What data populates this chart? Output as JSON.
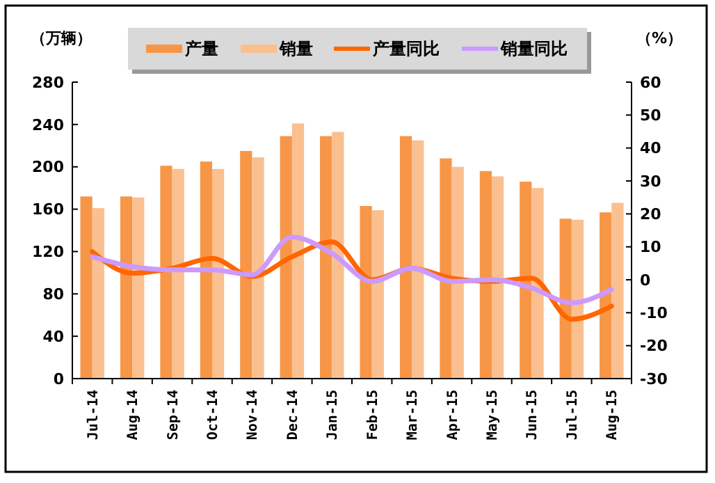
{
  "chart_data": {
    "type": "bar",
    "ylabel": "（万辆）",
    "y2label": "（%）",
    "categories": [
      "Jul-14",
      "Aug-14",
      "Sep-14",
      "Oct-14",
      "Nov-14",
      "Dec-14",
      "Jan-15",
      "Feb-15",
      "Mar-15",
      "Apr-15",
      "May-15",
      "Jun-15",
      "Jul-15",
      "Aug-15"
    ],
    "series": [
      {
        "name": "产量",
        "color": "#f79646",
        "values": [
          172,
          172,
          201,
          205,
          215,
          229,
          229,
          163,
          229,
          208,
          196,
          186,
          151,
          157
        ]
      },
      {
        "name": "销量",
        "color": "#fac090",
        "values": [
          161,
          171,
          198,
          198,
          209,
          241,
          233,
          159,
          225,
          200,
          191,
          180,
          150,
          166
        ]
      },
      {
        "name": "产量同比",
        "type": "line",
        "axis": "y2",
        "color": "#ff6600",
        "values": [
          8.5,
          2,
          3.5,
          6.5,
          1,
          7,
          11.5,
          0,
          3.5,
          0.5,
          -0.5,
          0.5,
          -12,
          -8
        ]
      },
      {
        "name": "销量同比",
        "type": "line",
        "axis": "y2",
        "color": "#cc99ff",
        "values": [
          7,
          4,
          3,
          3,
          1.5,
          13,
          8,
          -0.5,
          3.5,
          -0.5,
          0,
          -2.5,
          -7,
          -3
        ]
      }
    ],
    "ylim": [
      0,
      280
    ],
    "yticks": [
      0,
      40,
      80,
      120,
      160,
      200,
      240,
      280
    ],
    "y2lim": [
      -30,
      60
    ],
    "y2ticks": [
      -30,
      -20,
      -10,
      0,
      10,
      20,
      30,
      40,
      50,
      60
    ],
    "legend": "top",
    "grid": false
  }
}
